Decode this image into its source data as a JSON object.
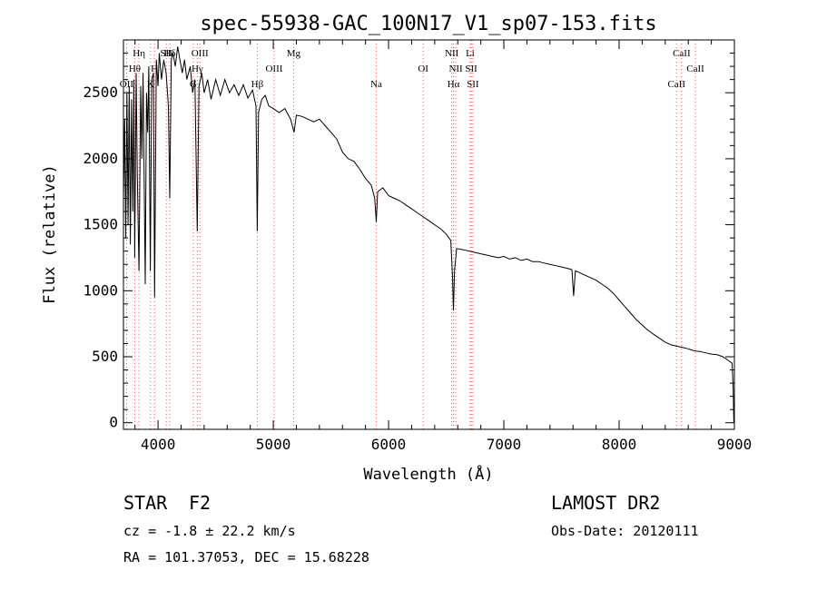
{
  "chart_data": {
    "type": "line",
    "title": "spec-55938-GAC_100N17_V1_sp07-153.fits",
    "xlabel": "Wavelength (Å)",
    "ylabel": "Flux (relative)",
    "xlim": [
      3700,
      9000
    ],
    "ylim": [
      -50,
      2900
    ],
    "x_ticks": [
      4000,
      5000,
      6000,
      7000,
      8000,
      9000
    ],
    "y_ticks": [
      0,
      500,
      1000,
      1500,
      2000,
      2500
    ],
    "grid": false,
    "series": [
      {
        "name": "spectrum",
        "points": [
          [
            3700,
            1700
          ],
          [
            3710,
            2300
          ],
          [
            3720,
            1400
          ],
          [
            3730,
            2500
          ],
          [
            3740,
            1500
          ],
          [
            3750,
            2550
          ],
          [
            3760,
            1350
          ],
          [
            3770,
            2450
          ],
          [
            3780,
            1600
          ],
          [
            3790,
            2600
          ],
          [
            3798,
            1250
          ],
          [
            3810,
            2650
          ],
          [
            3820,
            1900
          ],
          [
            3835,
            1150
          ],
          [
            3850,
            2550
          ],
          [
            3860,
            2000
          ],
          [
            3870,
            2650
          ],
          [
            3889,
            1050
          ],
          [
            3900,
            2500
          ],
          [
            3910,
            2200
          ],
          [
            3920,
            2700
          ],
          [
            3933,
            1150
          ],
          [
            3945,
            2600
          ],
          [
            3960,
            2650
          ],
          [
            3970,
            950
          ],
          [
            3985,
            2750
          ],
          [
            4000,
            2550
          ],
          [
            4010,
            2800
          ],
          [
            4030,
            2600
          ],
          [
            4050,
            2750
          ],
          [
            4070,
            2650
          ],
          [
            4090,
            2400
          ],
          [
            4102,
            1700
          ],
          [
            4115,
            2750
          ],
          [
            4130,
            2800
          ],
          [
            4150,
            2700
          ],
          [
            4170,
            2850
          ],
          [
            4190,
            2750
          ],
          [
            4210,
            2650
          ],
          [
            4230,
            2750
          ],
          [
            4250,
            2600
          ],
          [
            4280,
            2700
          ],
          [
            4300,
            2500
          ],
          [
            4320,
            2600
          ],
          [
            4340,
            1450
          ],
          [
            4355,
            2550
          ],
          [
            4380,
            2650
          ],
          [
            4400,
            2500
          ],
          [
            4430,
            2600
          ],
          [
            4460,
            2450
          ],
          [
            4500,
            2600
          ],
          [
            4540,
            2480
          ],
          [
            4580,
            2600
          ],
          [
            4620,
            2500
          ],
          [
            4660,
            2560
          ],
          [
            4700,
            2480
          ],
          [
            4740,
            2560
          ],
          [
            4780,
            2460
          ],
          [
            4820,
            2520
          ],
          [
            4850,
            2400
          ],
          [
            4861,
            1450
          ],
          [
            4872,
            2350
          ],
          [
            4900,
            2450
          ],
          [
            4930,
            2480
          ],
          [
            4960,
            2400
          ],
          [
            5000,
            2380
          ],
          [
            5050,
            2350
          ],
          [
            5100,
            2380
          ],
          [
            5150,
            2300
          ],
          [
            5180,
            2200
          ],
          [
            5200,
            2330
          ],
          [
            5250,
            2320
          ],
          [
            5300,
            2300
          ],
          [
            5350,
            2280
          ],
          [
            5400,
            2300
          ],
          [
            5450,
            2250
          ],
          [
            5500,
            2200
          ],
          [
            5550,
            2150
          ],
          [
            5600,
            2050
          ],
          [
            5650,
            2000
          ],
          [
            5700,
            1980
          ],
          [
            5750,
            1920
          ],
          [
            5800,
            1850
          ],
          [
            5850,
            1800
          ],
          [
            5880,
            1700
          ],
          [
            5893,
            1520
          ],
          [
            5905,
            1750
          ],
          [
            5950,
            1780
          ],
          [
            6000,
            1720
          ],
          [
            6050,
            1700
          ],
          [
            6100,
            1680
          ],
          [
            6150,
            1650
          ],
          [
            6200,
            1620
          ],
          [
            6250,
            1590
          ],
          [
            6300,
            1560
          ],
          [
            6350,
            1530
          ],
          [
            6400,
            1500
          ],
          [
            6450,
            1470
          ],
          [
            6500,
            1430
          ],
          [
            6540,
            1380
          ],
          [
            6555,
            1100
          ],
          [
            6563,
            850
          ],
          [
            6572,
            1150
          ],
          [
            6590,
            1320
          ],
          [
            6650,
            1310
          ],
          [
            6700,
            1300
          ],
          [
            6750,
            1290
          ],
          [
            6800,
            1280
          ],
          [
            6850,
            1270
          ],
          [
            6900,
            1260
          ],
          [
            6950,
            1250
          ],
          [
            7000,
            1260
          ],
          [
            7050,
            1240
          ],
          [
            7100,
            1250
          ],
          [
            7150,
            1230
          ],
          [
            7200,
            1240
          ],
          [
            7250,
            1220
          ],
          [
            7300,
            1220
          ],
          [
            7350,
            1210
          ],
          [
            7400,
            1200
          ],
          [
            7450,
            1190
          ],
          [
            7500,
            1180
          ],
          [
            7550,
            1170
          ],
          [
            7590,
            1160
          ],
          [
            7605,
            960
          ],
          [
            7620,
            1150
          ],
          [
            7650,
            1140
          ],
          [
            7700,
            1120
          ],
          [
            7750,
            1100
          ],
          [
            7800,
            1080
          ],
          [
            7850,
            1050
          ],
          [
            7900,
            1020
          ],
          [
            7950,
            980
          ],
          [
            8000,
            930
          ],
          [
            8050,
            880
          ],
          [
            8100,
            830
          ],
          [
            8150,
            780
          ],
          [
            8200,
            740
          ],
          [
            8250,
            700
          ],
          [
            8300,
            670
          ],
          [
            8350,
            640
          ],
          [
            8400,
            610
          ],
          [
            8450,
            590
          ],
          [
            8500,
            580
          ],
          [
            8550,
            570
          ],
          [
            8600,
            560
          ],
          [
            8650,
            545
          ],
          [
            8700,
            540
          ],
          [
            8750,
            530
          ],
          [
            8800,
            520
          ],
          [
            8850,
            515
          ],
          [
            8900,
            500
          ],
          [
            8950,
            470
          ],
          [
            8980,
            450
          ],
          [
            8990,
            250
          ],
          [
            8995,
            0
          ]
        ]
      }
    ],
    "line_markers": [
      {
        "label": "OII",
        "x": 3727,
        "row": 3
      },
      {
        "label": "Hθ",
        "x": 3798,
        "row": 2
      },
      {
        "label": "Hη",
        "x": 3835,
        "row": 1
      },
      {
        "label": "K",
        "x": 3934,
        "row": 3
      },
      {
        "label": "H",
        "x": 3969,
        "row": 2
      },
      {
        "label": "SII",
        "x": 4072,
        "row": 1
      },
      {
        "label": "Hδ",
        "x": 4102,
        "row": 1
      },
      {
        "label": "G",
        "x": 4305,
        "row": 3
      },
      {
        "label": "Hγ",
        "x": 4341,
        "row": 2
      },
      {
        "label": "OIII",
        "x": 4363,
        "row": 1
      },
      {
        "label": "Hβ",
        "x": 4861,
        "row": 3
      },
      {
        "label": "OIII",
        "x": 5007,
        "row": 2
      },
      {
        "label": "Mg",
        "x": 5176,
        "row": 1
      },
      {
        "label": "Na",
        "x": 5893,
        "row": 3
      },
      {
        "label": "OI",
        "x": 6300,
        "row": 2
      },
      {
        "label": "NII",
        "x": 6548,
        "row": 1
      },
      {
        "label": "Hα",
        "x": 6563,
        "row": 3
      },
      {
        "label": "NII",
        "x": 6583,
        "row": 2
      },
      {
        "label": "Li",
        "x": 6708,
        "row": 1
      },
      {
        "label": "SII",
        "x": 6717,
        "row": 2
      },
      {
        "label": "SII",
        "x": 6731,
        "row": 3
      },
      {
        "label": "CaII",
        "x": 8498,
        "row": 3
      },
      {
        "label": "CaII",
        "x": 8542,
        "row": 1
      },
      {
        "label": "CaII",
        "x": 8662,
        "row": 2
      }
    ]
  },
  "info": {
    "object_class": "STAR",
    "subclass": "F2",
    "survey": "LAMOST DR2",
    "cz": "cz = -1.8 ± 22.2 km/s",
    "obs_date": "Obs-Date: 20120111",
    "coords": "RA = 101.37053, DEC =  15.68228"
  }
}
